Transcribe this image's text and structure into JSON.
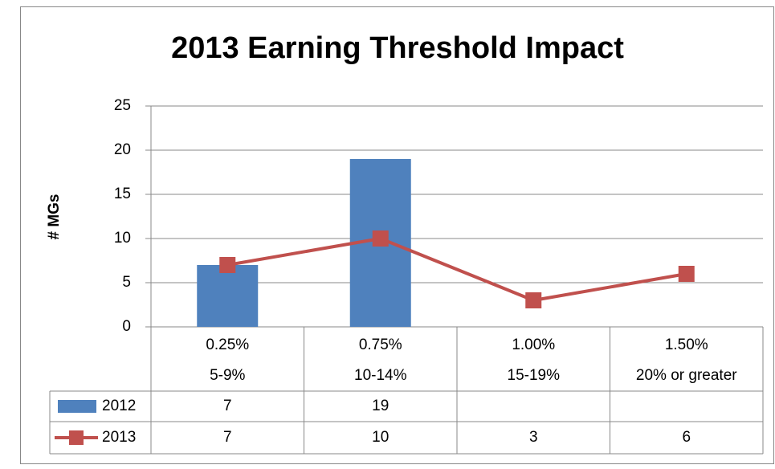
{
  "chart_data": {
    "type": "bar_line",
    "title": "2013 Earning Threshold Impact",
    "y_label": "# MGs",
    "categories": [
      [
        "0.25%",
        "5-9%"
      ],
      [
        "0.75%",
        "10-14%"
      ],
      [
        "1.00%",
        "15-19%"
      ],
      [
        "1.50%",
        "20% or greater"
      ]
    ],
    "series": [
      {
        "name": "2012",
        "type": "bar",
        "color": "#4f81bd",
        "values": [
          7,
          19,
          null,
          null
        ]
      },
      {
        "name": "2013",
        "type": "line",
        "color": "#c0504d",
        "values": [
          7,
          10,
          3,
          6
        ]
      }
    ],
    "ylim": [
      0,
      25
    ],
    "yticks": [
      0,
      5,
      10,
      15,
      20,
      25
    ],
    "grid": true,
    "data_table": true
  }
}
